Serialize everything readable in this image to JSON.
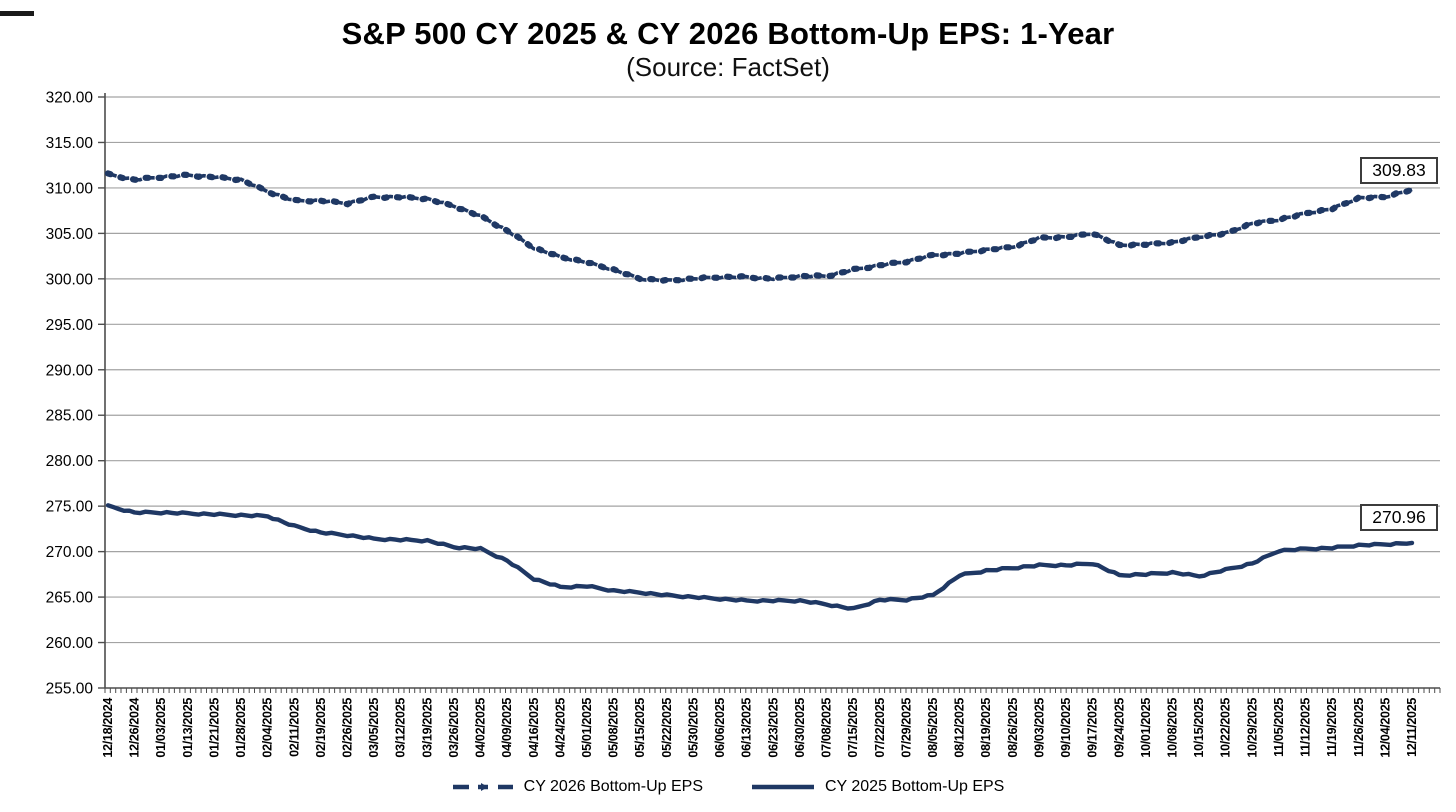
{
  "title": "S&P 500 CY 2025 & CY 2026 Bottom-Up EPS: 1-Year",
  "subtitle": "(Source: FactSet)",
  "colors": {
    "line_navy": "#1f3864",
    "gridline": "#a3a3a3",
    "axis": "#4d4d4d",
    "label_text": "#000000"
  },
  "end_labels": {
    "cy2026": "309.83",
    "cy2025": "270.96"
  },
  "legend": {
    "cy2026_label": "CY 2026 Bottom-Up EPS",
    "cy2025_label": "CY 2025 Bottom-Up EPS"
  },
  "chart_data": {
    "type": "line",
    "title": "S&P 500 CY 2025 & CY 2026 Bottom-Up EPS: 1-Year",
    "subtitle": "(Source: FactSet)",
    "grid": "horizontal",
    "legend_position": "bottom",
    "ylim": [
      255,
      320
    ],
    "ytick_step": 5,
    "y_tick_labels": [
      "320.00",
      "315.00",
      "310.00",
      "305.00",
      "300.00",
      "295.00",
      "290.00",
      "285.00",
      "280.00",
      "275.00",
      "270.00",
      "265.00",
      "260.00",
      "255.00"
    ],
    "x_labels": [
      "12/18/2024",
      "12/26/2024",
      "01/03/2025",
      "01/13/2025",
      "01/21/2025",
      "01/28/2025",
      "02/04/2025",
      "02/11/2025",
      "02/19/2025",
      "02/26/2025",
      "03/05/2025",
      "03/12/2025",
      "03/19/2025",
      "03/26/2025",
      "04/02/2025",
      "04/09/2025",
      "04/16/2025",
      "04/24/2025",
      "05/01/2025",
      "05/08/2025",
      "05/15/2025",
      "05/22/2025",
      "05/30/2025",
      "06/06/2025",
      "06/13/2025",
      "06/23/2025",
      "06/30/2025",
      "07/08/2025",
      "07/15/2025",
      "07/22/2025",
      "07/29/2025",
      "08/05/2025",
      "08/12/2025",
      "08/19/2025",
      "08/26/2025",
      "09/03/2025",
      "09/10/2025",
      "09/17/2025",
      "09/24/2025",
      "10/01/2025",
      "10/08/2025",
      "10/15/2025",
      "10/22/2025",
      "10/29/2025",
      "11/05/2025",
      "11/12/2025",
      "11/19/2025",
      "11/26/2025",
      "12/04/2025",
      "12/11/2025"
    ],
    "series": [
      {
        "name": "CY 2026 Bottom-Up EPS",
        "style": "dashed",
        "final_label": "309.83",
        "values": [
          311.5,
          310.9,
          311.2,
          311.4,
          311.2,
          310.9,
          309.6,
          308.6,
          308.6,
          308.3,
          309.0,
          309.0,
          308.8,
          308.0,
          306.9,
          305.3,
          303.4,
          302.4,
          301.8,
          301.0,
          300.0,
          299.8,
          300.0,
          300.2,
          300.2,
          300.0,
          300.3,
          300.3,
          301.0,
          301.5,
          301.9,
          302.6,
          302.8,
          303.2,
          303.5,
          304.5,
          304.6,
          305.0,
          303.7,
          303.8,
          304.0,
          304.6,
          305.0,
          306.1,
          306.5,
          307.2,
          307.7,
          308.9,
          309.0,
          309.83
        ]
      },
      {
        "name": "CY 2025 Bottom-Up EPS",
        "style": "solid",
        "final_label": "270.96",
        "values": [
          275.0,
          274.3,
          274.3,
          274.2,
          274.1,
          274.0,
          273.9,
          272.8,
          272.1,
          271.8,
          271.4,
          271.3,
          271.2,
          270.5,
          270.3,
          269.0,
          267.0,
          266.1,
          266.2,
          265.7,
          265.5,
          265.2,
          265.0,
          264.8,
          264.6,
          264.6,
          264.6,
          264.2,
          263.7,
          264.7,
          264.7,
          265.2,
          267.4,
          267.9,
          268.2,
          268.5,
          268.5,
          268.7,
          267.4,
          267.5,
          267.7,
          267.3,
          268.0,
          268.7,
          270.1,
          270.3,
          270.4,
          270.7,
          270.8,
          270.96
        ]
      }
    ]
  }
}
